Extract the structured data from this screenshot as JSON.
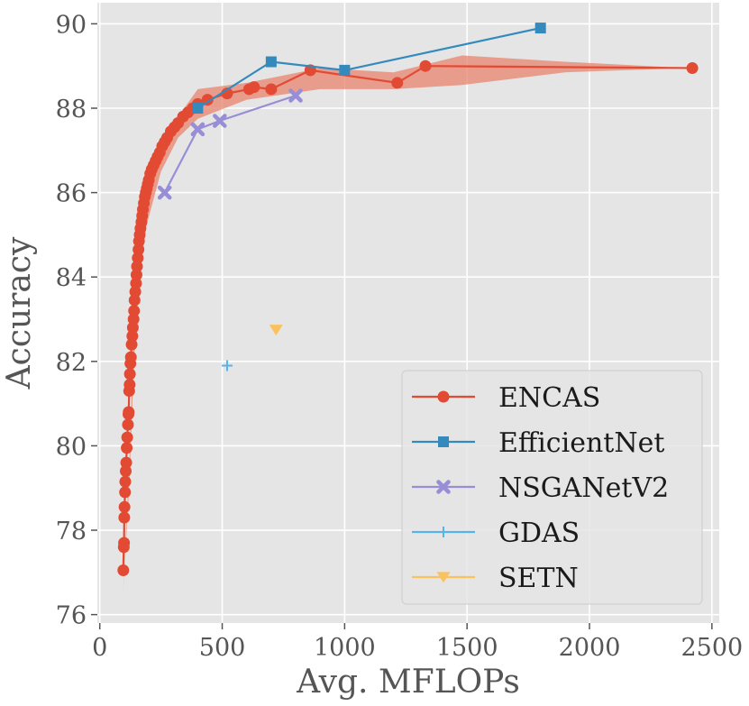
{
  "chart_data": {
    "type": "line",
    "title": "",
    "xlabel": "Avg. MFLOPs",
    "ylabel": "Accuracy",
    "xlim": [
      -10,
      2530
    ],
    "ylim": [
      75.8,
      90.5
    ],
    "xticks": [
      0,
      500,
      1000,
      1500,
      2000,
      2500
    ],
    "yticks": [
      76,
      78,
      80,
      82,
      84,
      86,
      88,
      90
    ],
    "grid": true,
    "legend_position": "lower-right",
    "band": {
      "series": "ENCAS",
      "color": "#e8836e",
      "upper": [
        [
          95,
          76.5
        ],
        [
          120,
          79.5
        ],
        [
          140,
          83.0
        ],
        [
          160,
          84.6
        ],
        [
          190,
          86.0
        ],
        [
          250,
          87.0
        ],
        [
          320,
          87.8
        ],
        [
          400,
          88.45
        ],
        [
          600,
          88.6
        ],
        [
          900,
          88.95
        ],
        [
          1200,
          88.85
        ],
        [
          1480,
          89.25
        ],
        [
          1900,
          89.1
        ],
        [
          2400,
          88.95
        ]
      ],
      "lower": [
        [
          2400,
          88.95
        ],
        [
          1900,
          88.85
        ],
        [
          1480,
          88.55
        ],
        [
          1200,
          88.45
        ],
        [
          900,
          88.45
        ],
        [
          600,
          88.2
        ],
        [
          400,
          87.75
        ],
        [
          320,
          87.3
        ],
        [
          250,
          86.5
        ],
        [
          190,
          85.2
        ],
        [
          160,
          83.9
        ],
        [
          140,
          82.0
        ],
        [
          120,
          79.0
        ],
        [
          95,
          76.5
        ]
      ]
    },
    "series": [
      {
        "name": "ENCAS",
        "color": "#e24a33",
        "marker": "circle",
        "x": [
          96,
          98,
          99,
          100,
          101,
          103,
          104,
          106,
          108,
          110,
          112,
          115,
          117,
          118,
          120,
          122,
          123,
          125,
          127,
          130,
          133,
          135,
          138,
          140,
          142,
          145,
          148,
          150,
          152,
          155,
          158,
          160,
          163,
          166,
          170,
          173,
          176,
          180,
          184,
          188,
          192,
          196,
          200,
          206,
          212,
          220,
          228,
          236,
          245,
          255,
          265,
          275,
          290,
          305,
          320,
          340,
          360,
          380,
          400,
          440,
          520,
          610,
          630,
          700,
          860,
          1215,
          1330,
          2420
        ],
        "y": [
          77.05,
          77.6,
          77.7,
          78.3,
          78.55,
          78.9,
          79.15,
          79.4,
          79.6,
          79.95,
          80.2,
          80.5,
          80.75,
          80.8,
          81.3,
          81.45,
          81.7,
          81.95,
          82.1,
          82.4,
          82.6,
          82.8,
          83.0,
          83.2,
          83.45,
          83.65,
          83.85,
          84.05,
          84.25,
          84.45,
          84.65,
          84.85,
          85.0,
          85.15,
          85.3,
          85.45,
          85.6,
          85.75,
          85.9,
          86.0,
          86.1,
          86.2,
          86.3,
          86.45,
          86.55,
          86.65,
          86.75,
          86.85,
          86.95,
          87.1,
          87.2,
          87.3,
          87.45,
          87.55,
          87.65,
          87.8,
          87.9,
          88.0,
          88.1,
          88.2,
          88.35,
          88.45,
          88.5,
          88.45,
          88.9,
          88.6,
          89.0,
          88.95
        ]
      },
      {
        "name": "EfficientNet",
        "color": "#348abd",
        "marker": "square",
        "x": [
          400,
          700,
          1000,
          1800
        ],
        "y": [
          88.0,
          89.1,
          88.9,
          89.9
        ]
      },
      {
        "name": "NSGANetV2",
        "color": "#988ed5",
        "marker": "x",
        "x": [
          265,
          400,
          490,
          800
        ],
        "y": [
          86.0,
          87.5,
          87.7,
          88.3
        ]
      },
      {
        "name": "GDAS",
        "color": "#56b4e9",
        "marker": "plus",
        "x": [
          520
        ],
        "y": [
          81.9
        ]
      },
      {
        "name": "SETN",
        "color": "#fbc15e",
        "marker": "triangle-down",
        "x": [
          720
        ],
        "y": [
          82.75
        ]
      }
    ]
  }
}
